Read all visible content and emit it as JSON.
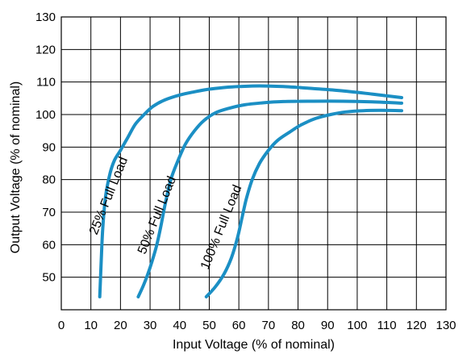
{
  "chart_data": {
    "type": "line",
    "xlabel": "Input Voltage (% of nominal)",
    "ylabel": "Output Voltage (% of nominal)",
    "xlim": [
      0,
      130
    ],
    "ylim": [
      40,
      130
    ],
    "x_ticks": [
      0,
      10,
      20,
      30,
      40,
      50,
      60,
      70,
      80,
      90,
      100,
      110,
      120,
      130
    ],
    "y_ticks": [
      50,
      60,
      70,
      80,
      90,
      100,
      110,
      120,
      130
    ],
    "grid": true,
    "line_color": "#1b8fc4",
    "series": [
      {
        "name": "25% Full Load",
        "points": [
          [
            13,
            44
          ],
          [
            13.5,
            55
          ],
          [
            14,
            65
          ],
          [
            15,
            75
          ],
          [
            16.5,
            82
          ],
          [
            18,
            86
          ],
          [
            20,
            89
          ],
          [
            22.5,
            93
          ],
          [
            25,
            97
          ],
          [
            28,
            100
          ],
          [
            31,
            102.5
          ],
          [
            35,
            104.5
          ],
          [
            40,
            106
          ],
          [
            45,
            107
          ],
          [
            50,
            107.8
          ],
          [
            55,
            108.3
          ],
          [
            60,
            108.6
          ],
          [
            67,
            108.8
          ],
          [
            75,
            108.6
          ],
          [
            85,
            108
          ],
          [
            95,
            107.3
          ],
          [
            105,
            106.3
          ],
          [
            115,
            105.2
          ]
        ]
      },
      {
        "name": "50% Full Load",
        "points": [
          [
            26,
            44
          ],
          [
            28,
            48
          ],
          [
            30,
            53
          ],
          [
            32,
            59
          ],
          [
            33.5,
            65
          ],
          [
            35,
            72
          ],
          [
            37,
            80
          ],
          [
            39.5,
            86
          ],
          [
            42,
            91
          ],
          [
            45,
            95
          ],
          [
            48,
            98
          ],
          [
            52,
            100.5
          ],
          [
            57,
            102
          ],
          [
            62,
            103
          ],
          [
            68,
            103.6
          ],
          [
            75,
            104
          ],
          [
            85,
            104.1
          ],
          [
            95,
            104.1
          ],
          [
            105,
            103.9
          ],
          [
            115,
            103.5
          ]
        ]
      },
      {
        "name": "100% Full Load",
        "points": [
          [
            49,
            44
          ],
          [
            52,
            47
          ],
          [
            55,
            51
          ],
          [
            57.5,
            56
          ],
          [
            59.5,
            62
          ],
          [
            61,
            68
          ],
          [
            62.5,
            74
          ],
          [
            64.5,
            80
          ],
          [
            67,
            85
          ],
          [
            70,
            89
          ],
          [
            73,
            92
          ],
          [
            77,
            94.5
          ],
          [
            81,
            96.8
          ],
          [
            86,
            98.8
          ],
          [
            91,
            100
          ],
          [
            96,
            100.8
          ],
          [
            102,
            101.2
          ],
          [
            108,
            101.3
          ],
          [
            115,
            101.2
          ]
        ]
      }
    ]
  }
}
